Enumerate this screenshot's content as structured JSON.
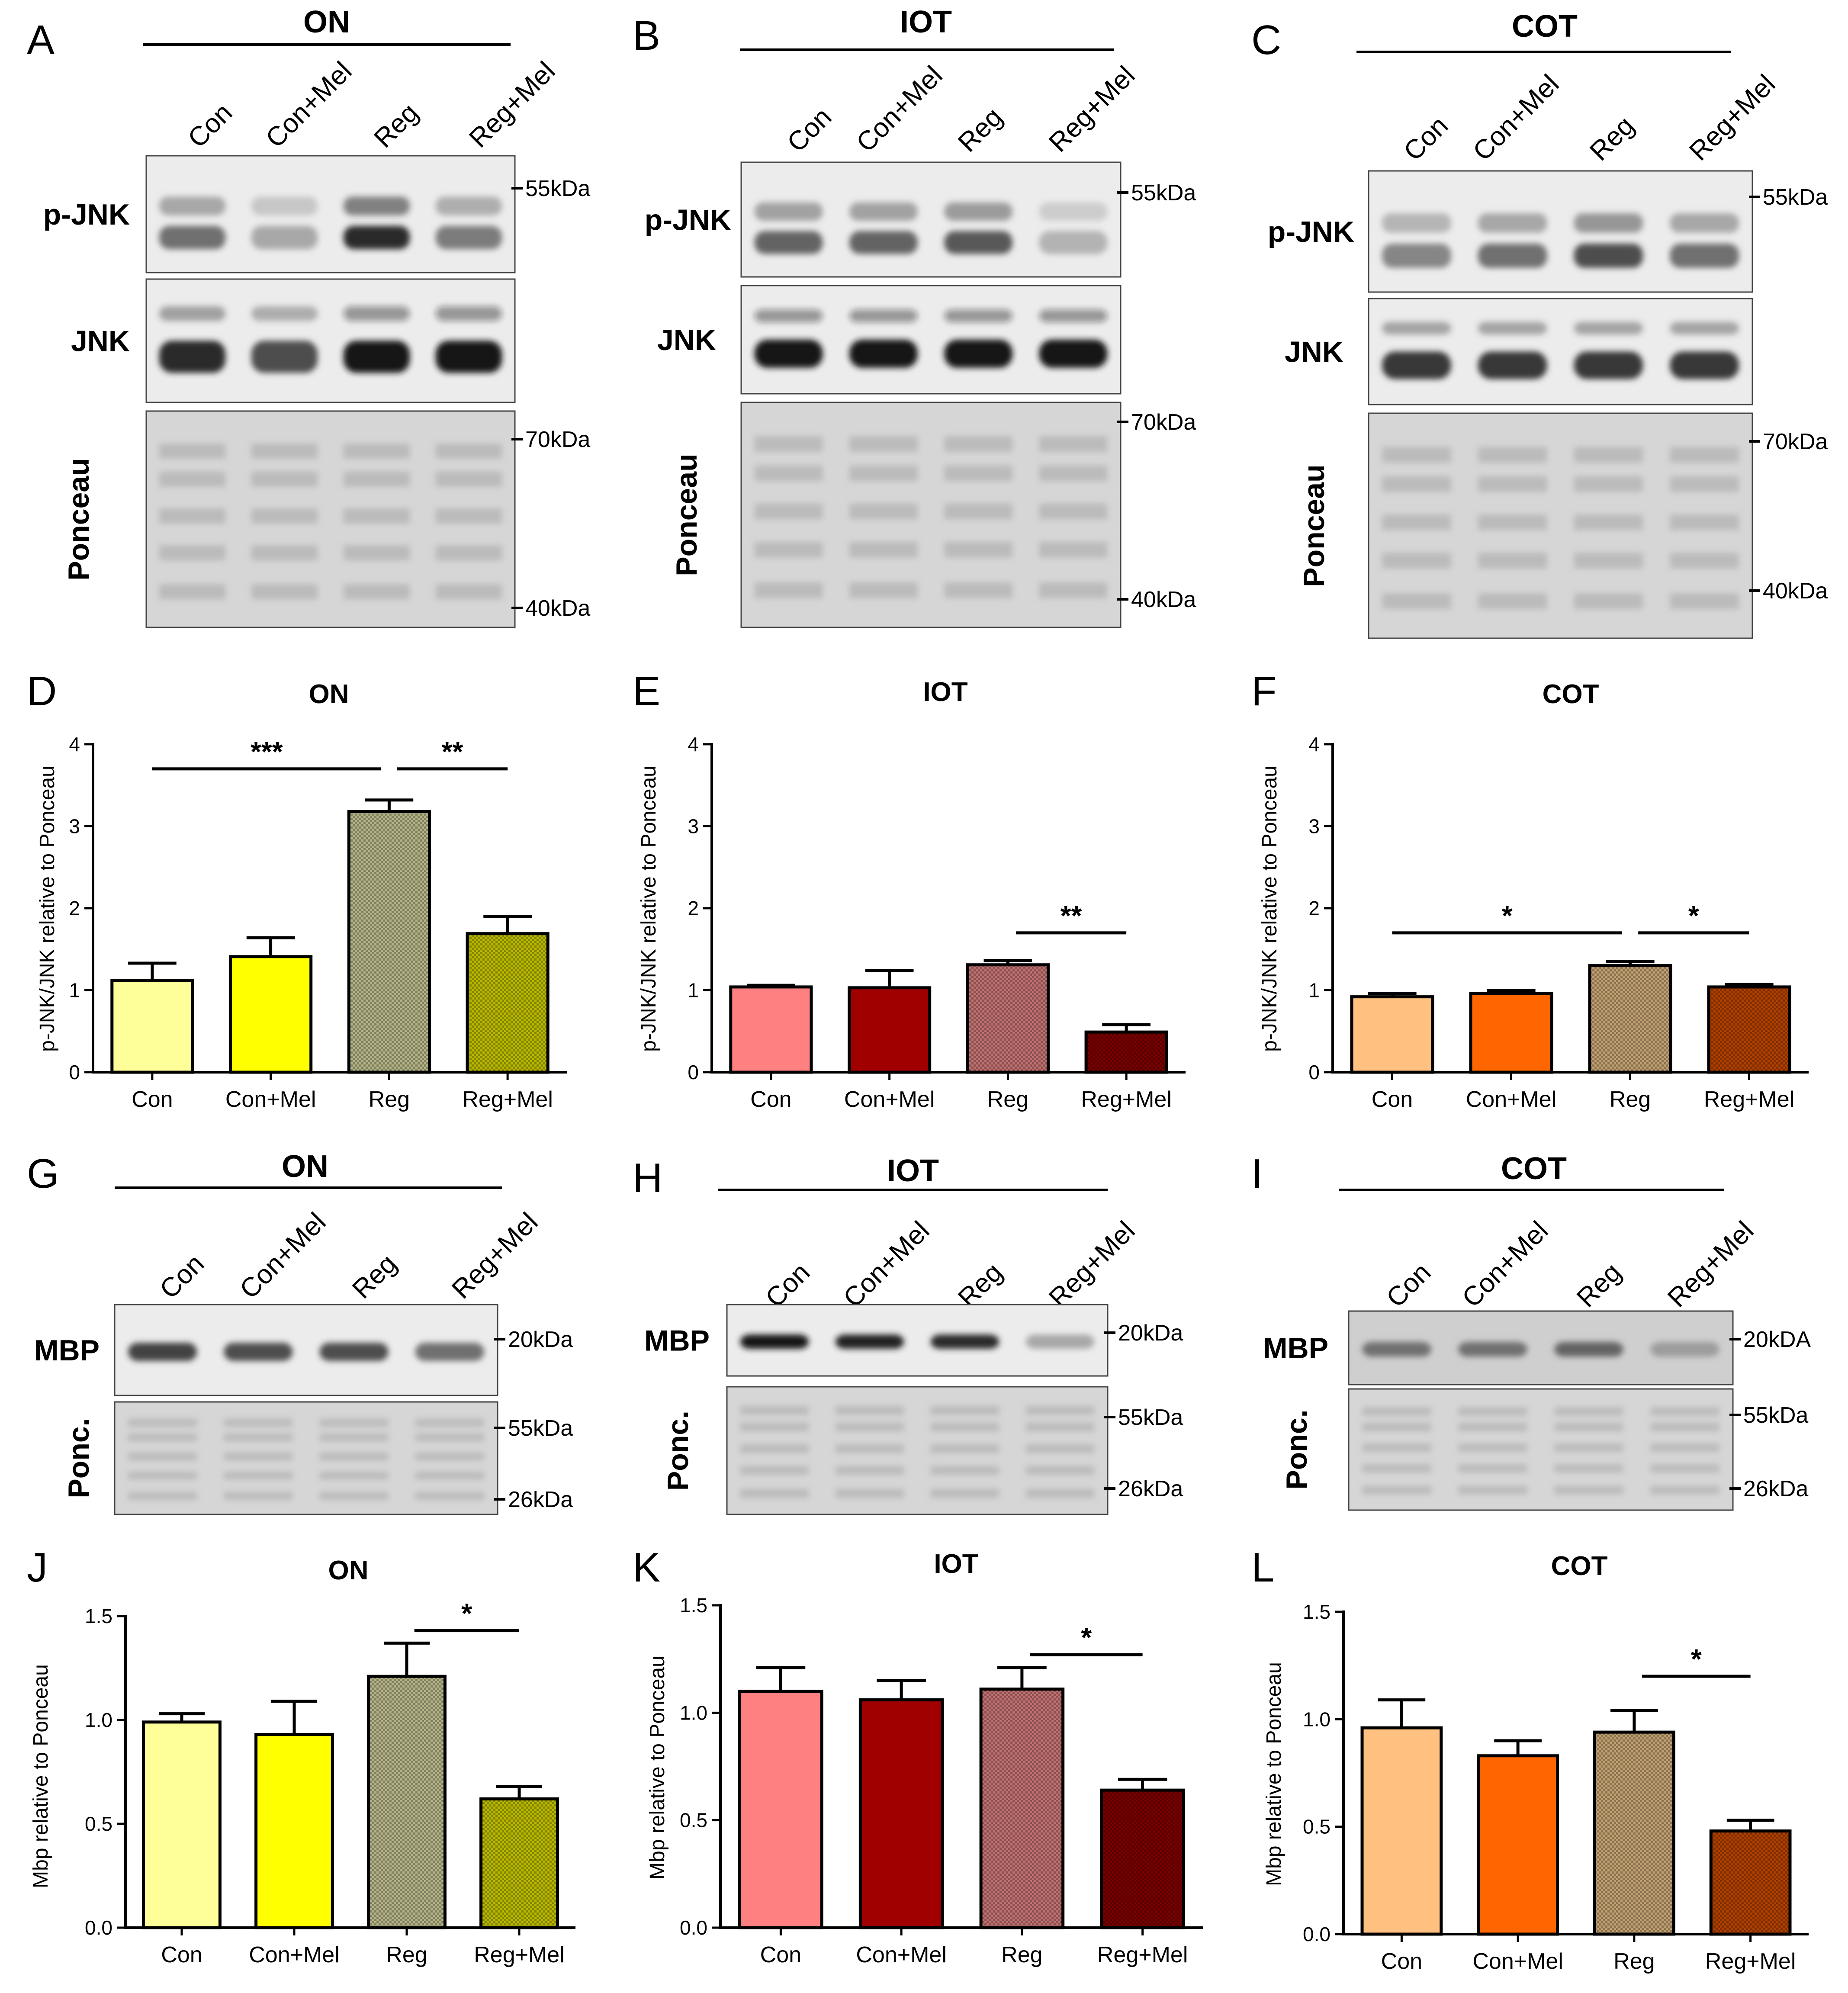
{
  "figure": {
    "blots": [
      {
        "panel": "A",
        "group": "ON",
        "tissue_color": "yellow",
        "lanes": [
          "Con",
          "Con+Mel",
          "Reg",
          "Reg+Mel"
        ],
        "rows": [
          {
            "label": "p-JNK",
            "markers": [
              "55kDa"
            ],
            "band": "pjnk",
            "intensity": [
              0.55,
              0.3,
              0.85,
              0.5
            ]
          },
          {
            "label": "JNK",
            "markers": [],
            "band": "jnk",
            "intensity": [
              0.85,
              0.7,
              0.95,
              0.95
            ]
          },
          {
            "label": "Ponceau",
            "markers": [
              "70kDa",
              "40kDa"
            ],
            "band": "ponceau",
            "intensity": [
              0.5,
              0.5,
              0.5,
              0.5
            ]
          }
        ]
      },
      {
        "panel": "B",
        "group": "IOT",
        "tissue_color": "red",
        "lanes": [
          "Con",
          "Con+Mel",
          "Reg",
          "Reg+Mel"
        ],
        "rows": [
          {
            "label": "p-JNK",
            "markers": [
              "55kDa"
            ],
            "band": "pjnk",
            "intensity": [
              0.6,
              0.6,
              0.65,
              0.25
            ]
          },
          {
            "label": "JNK",
            "markers": [],
            "band": "jnk",
            "intensity": [
              0.95,
              0.95,
              0.95,
              0.95
            ]
          },
          {
            "label": "Ponceau",
            "markers": [
              "70kDa",
              "40kDa"
            ],
            "band": "ponceau",
            "intensity": [
              0.55,
              0.55,
              0.55,
              0.55
            ]
          }
        ]
      },
      {
        "panel": "C",
        "group": "COT",
        "tissue_color": "orange",
        "lanes": [
          "Con",
          "Con+Mel",
          "Reg",
          "Reg+Mel"
        ],
        "rows": [
          {
            "label": "p-JNK",
            "markers": [
              "55kDa"
            ],
            "band": "pjnk",
            "intensity": [
              0.45,
              0.55,
              0.7,
              0.55
            ]
          },
          {
            "label": "JNK",
            "markers": [],
            "band": "jnk",
            "intensity": [
              0.8,
              0.8,
              0.8,
              0.8
            ]
          },
          {
            "label": "Ponceau",
            "markers": [
              "70kDa",
              "40kDa"
            ],
            "band": "ponceau",
            "intensity": [
              0.5,
              0.5,
              0.5,
              0.5
            ]
          }
        ]
      },
      {
        "panel": "G",
        "group": "ON",
        "tissue_color": "yellow",
        "lanes": [
          "Con",
          "Con+Mel",
          "Reg",
          "Reg+Mel"
        ],
        "rows": [
          {
            "label": "MBP",
            "markers": [
              "20kDa"
            ],
            "band": "mbp",
            "intensity": [
              0.75,
              0.7,
              0.7,
              0.55
            ]
          },
          {
            "label": "Ponc.",
            "markers": [
              "55kDa",
              "26kDa"
            ],
            "band": "ponceau",
            "intensity": [
              0.55,
              0.55,
              0.55,
              0.55
            ]
          }
        ]
      },
      {
        "panel": "H",
        "group": "IOT",
        "tissue_color": "red",
        "lanes": [
          "Con",
          "Con+Mel",
          "Reg",
          "Reg+Mel"
        ],
        "rows": [
          {
            "label": "MBP",
            "markers": [
              "20kDa"
            ],
            "band": "mbp",
            "intensity": [
              0.95,
              0.9,
              0.85,
              0.3
            ]
          },
          {
            "label": "Ponc.",
            "markers": [
              "55kDa",
              "26kDa"
            ],
            "band": "ponceau",
            "intensity": [
              0.5,
              0.5,
              0.5,
              0.5
            ]
          }
        ]
      },
      {
        "panel": "I",
        "group": "COT",
        "tissue_color": "orange",
        "lanes": [
          "Con",
          "Con+Mel",
          "Reg",
          "Reg+Mel"
        ],
        "rows": [
          {
            "label": "MBP",
            "markers": [
              "20kDA"
            ],
            "band": "mbp",
            "intensity": [
              0.55,
              0.55,
              0.6,
              0.35
            ]
          },
          {
            "label": "Ponc.",
            "markers": [
              "55kDa",
              "26kDa"
            ],
            "band": "ponceau",
            "intensity": [
              0.6,
              0.6,
              0.6,
              0.6
            ]
          }
        ]
      }
    ]
  },
  "chart_data": [
    {
      "panel": "D",
      "type": "bar",
      "title": "ON",
      "xlabel": "",
      "ylabel": "p-JNK/JNK relative to Ponceau",
      "categories": [
        "Con",
        "Con+Mel",
        "Reg",
        "Reg+Mel"
      ],
      "values": [
        1.12,
        1.41,
        3.18,
        1.69
      ],
      "errors": [
        0.21,
        0.23,
        0.14,
        0.21
      ],
      "ylim": [
        0,
        4
      ],
      "yticks": [
        "0",
        "1",
        "2",
        "3",
        "4"
      ],
      "tick_values": [
        0,
        1,
        2,
        3,
        4
      ],
      "colors": [
        "#ffff99",
        "#ffff00",
        "#b3b386",
        "#b8b800"
      ],
      "patterned": [
        false,
        false,
        true,
        true
      ],
      "significance": [
        {
          "from": 0,
          "to": 2,
          "label": "***",
          "level": 3.7
        },
        {
          "from": 2,
          "to": 3,
          "label": "**",
          "level": 3.7
        }
      ]
    },
    {
      "panel": "E",
      "type": "bar",
      "title": "IOT",
      "xlabel": "",
      "ylabel": "p-JNK/JNK relative to Ponceau",
      "categories": [
        "Con",
        "Con+Mel",
        "Reg",
        "Reg+Mel"
      ],
      "values": [
        1.04,
        1.03,
        1.31,
        0.49
      ],
      "errors": [
        0.02,
        0.21,
        0.05,
        0.09
      ],
      "ylim": [
        0,
        4
      ],
      "yticks": [
        "0",
        "1",
        "2",
        "3",
        "4"
      ],
      "tick_values": [
        0,
        1,
        2,
        3,
        4
      ],
      "colors": [
        "#ff8080",
        "#a00000",
        "#c07070",
        "#7a0000"
      ],
      "patterned": [
        false,
        false,
        true,
        true
      ],
      "significance": [
        {
          "from": 2,
          "to": 3,
          "label": "**",
          "level": 1.7
        }
      ]
    },
    {
      "panel": "F",
      "type": "bar",
      "title": "COT",
      "xlabel": "",
      "ylabel": "p-JNK/JNK relative to Ponceau",
      "categories": [
        "Con",
        "Con+Mel",
        "Reg",
        "Reg+Mel"
      ],
      "values": [
        0.92,
        0.96,
        1.3,
        1.04
      ],
      "errors": [
        0.04,
        0.04,
        0.05,
        0.03
      ],
      "ylim": [
        0,
        4
      ],
      "yticks": [
        "0",
        "1",
        "2",
        "3",
        "4"
      ],
      "tick_values": [
        0,
        1,
        2,
        3,
        4
      ],
      "colors": [
        "#ffc080",
        "#ff6600",
        "#c0a070",
        "#b04000"
      ],
      "patterned": [
        false,
        false,
        true,
        true
      ],
      "significance": [
        {
          "from": 0,
          "to": 2,
          "label": "*",
          "level": 1.7
        },
        {
          "from": 2,
          "to": 3,
          "label": "*",
          "level": 1.7
        }
      ]
    },
    {
      "panel": "J",
      "type": "bar",
      "title": "ON",
      "xlabel": "",
      "ylabel": "Mbp relative to Ponceau",
      "categories": [
        "Con",
        "Con+Mel",
        "Reg",
        "Reg+Mel"
      ],
      "values": [
        0.99,
        0.93,
        1.21,
        0.62
      ],
      "errors": [
        0.04,
        0.16,
        0.16,
        0.06
      ],
      "ylim": [
        0,
        1.5
      ],
      "yticks": [
        "0.0",
        "0.5",
        "1.0",
        "1.5"
      ],
      "tick_values": [
        0,
        0.5,
        1.0,
        1.5
      ],
      "colors": [
        "#ffff99",
        "#ffff00",
        "#b3b386",
        "#b8b800"
      ],
      "patterned": [
        false,
        false,
        true,
        true
      ],
      "significance": [
        {
          "from": 2,
          "to": 3,
          "label": "*",
          "level": 1.43
        }
      ]
    },
    {
      "panel": "K",
      "type": "bar",
      "title": "IOT",
      "xlabel": "",
      "ylabel": "Mbp relative to Ponceau",
      "categories": [
        "Con",
        "Con+Mel",
        "Reg",
        "Reg+Mel"
      ],
      "values": [
        1.1,
        1.06,
        1.11,
        0.64
      ],
      "errors": [
        0.11,
        0.09,
        0.1,
        0.05
      ],
      "ylim": [
        0,
        1.5
      ],
      "yticks": [
        "0.0",
        "0.5",
        "1.0",
        "1.5"
      ],
      "tick_values": [
        0,
        0.5,
        1.0,
        1.5
      ],
      "colors": [
        "#ff8080",
        "#a00000",
        "#c07070",
        "#7a0000"
      ],
      "patterned": [
        false,
        false,
        true,
        true
      ],
      "significance": [
        {
          "from": 2,
          "to": 3,
          "label": "*",
          "level": 1.27
        }
      ]
    },
    {
      "panel": "L",
      "type": "bar",
      "title": "COT",
      "xlabel": "",
      "ylabel": "Mbp relative to Ponceau",
      "categories": [
        "Con",
        "Con+Mel",
        "Reg",
        "Reg+Mel"
      ],
      "values": [
        0.96,
        0.83,
        0.94,
        0.48
      ],
      "errors": [
        0.13,
        0.07,
        0.1,
        0.05
      ],
      "ylim": [
        0,
        1.5
      ],
      "yticks": [
        "0.0",
        "0.5",
        "1.0",
        "1.5"
      ],
      "tick_values": [
        0,
        0.5,
        1.0,
        1.5
      ],
      "colors": [
        "#ffc080",
        "#ff6600",
        "#c0a070",
        "#b04000"
      ],
      "patterned": [
        false,
        false,
        true,
        true
      ],
      "significance": [
        {
          "from": 2,
          "to": 3,
          "label": "*",
          "level": 1.2
        }
      ]
    }
  ]
}
